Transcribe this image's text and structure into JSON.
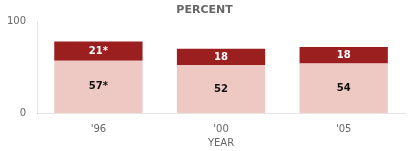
{
  "chart_data": {
    "type": "bar",
    "title": "PERCENT",
    "x_label": "YEAR",
    "categories": [
      "'96",
      "'00",
      "'05"
    ],
    "stacked": true,
    "data_labels": true,
    "series": [
      {
        "color": "#eec8c3",
        "values": [
          57,
          52,
          54
        ],
        "value_labels": [
          "57*",
          "52",
          "54"
        ]
      },
      {
        "color": "#9b1f1f",
        "values": [
          21,
          18,
          18
        ],
        "value_labels": [
          "21*",
          "18",
          "18"
        ]
      }
    ],
    "ylim": [
      0,
      100
    ],
    "yticks": [
      0,
      100
    ],
    "grid": false
  }
}
